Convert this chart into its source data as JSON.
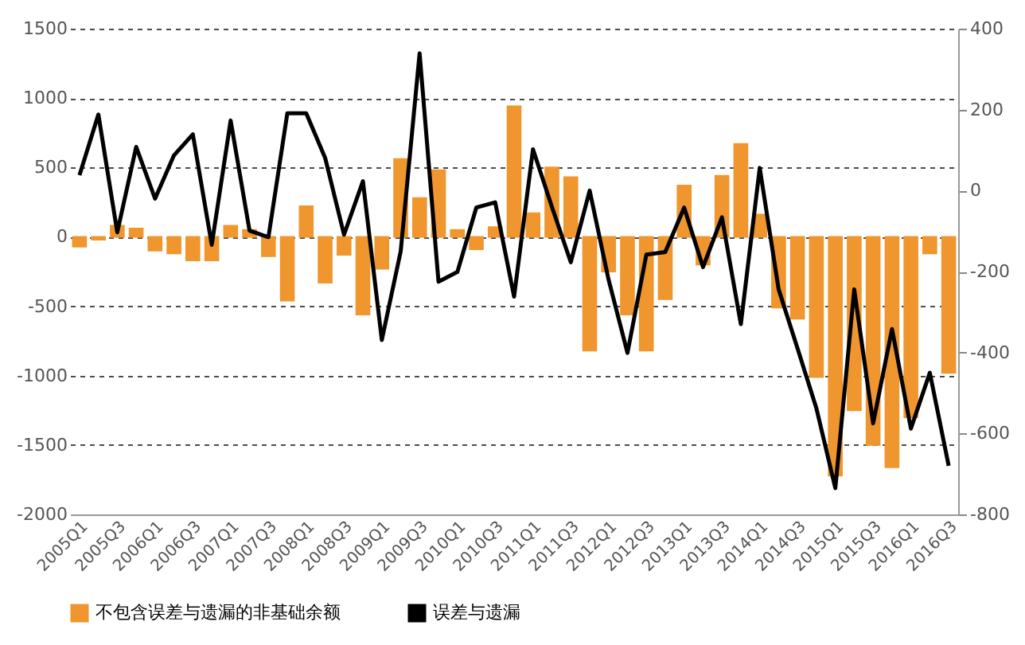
{
  "chart_data": {
    "type": "bar",
    "categories": [
      "2005Q1",
      null,
      "2005Q3",
      null,
      "2006Q1",
      null,
      "2006Q3",
      null,
      "2007Q1",
      null,
      "2007Q3",
      null,
      "2008Q1",
      null,
      "2008Q3",
      null,
      "2009Q1",
      null,
      "2009Q3",
      null,
      "2010Q1",
      null,
      "2010Q3",
      null,
      "2011Q1",
      null,
      "2011Q3",
      null,
      "2012Q1",
      null,
      "2012Q3",
      null,
      "2013Q1",
      null,
      "2013Q3",
      null,
      "2014Q1",
      null,
      "2014Q3",
      null,
      "2015Q1",
      null,
      "2015Q3",
      null,
      "2016Q1",
      null,
      "2016Q3"
    ],
    "series": [
      {
        "name": "不包含误差与遗漏的非基础余额",
        "color": "#f0962e",
        "values": [
          -70,
          -20,
          80,
          60,
          -100,
          -120,
          -170,
          -170,
          80,
          50,
          -140,
          -460,
          220,
          -330,
          -130,
          -560,
          -230,
          560,
          280,
          480,
          50,
          -90,
          70,
          940,
          170,
          500,
          430,
          -820,
          -250,
          -560,
          -820,
          -450,
          370,
          -200,
          440,
          670,
          160,
          -510,
          -590,
          -1010,
          -1720,
          -1250,
          -1500,
          -1660,
          -1300,
          -120,
          -980
        ]
      },
      {
        "name": "误差与遗漏",
        "type": "line",
        "axis": "y2",
        "color": "#000000",
        "values": [
          38,
          188,
          -103,
          108,
          -20,
          87,
          139,
          -134,
          173,
          -99,
          -115,
          191,
          191,
          81,
          -109,
          23,
          -369,
          -150,
          339,
          -225,
          -201,
          -42,
          -29,
          -262,
          102,
          -40,
          -177,
          0,
          -220,
          -401,
          -158,
          -152,
          -42,
          -189,
          -66,
          -330,
          56,
          -244,
          -390,
          -538,
          -735,
          -244,
          -575,
          -342,
          -588,
          -450,
          -680
        ]
      }
    ],
    "ylim": [
      -2000,
      1500
    ],
    "yticks": [
      -2000,
      -1500,
      -1000,
      -500,
      0,
      500,
      1000,
      1500
    ],
    "y2lim": [
      -800,
      400
    ],
    "y2ticks": [
      -800,
      -600,
      -400,
      -200,
      0,
      200,
      400
    ],
    "grid": "y",
    "legend": "bottom",
    "line_style": "solid"
  }
}
